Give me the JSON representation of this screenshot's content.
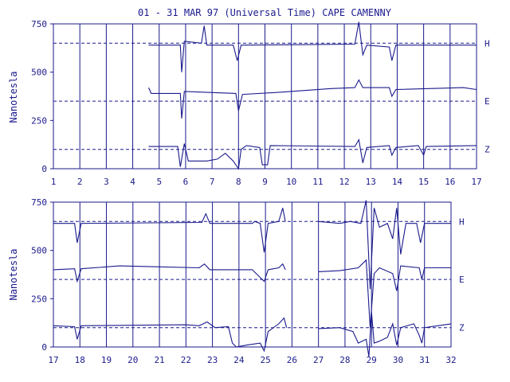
{
  "title": "01 - 31 MAR 97 (Universal Time) CAPE CAMENNY",
  "ylabel": "Nanotesla",
  "colors": {
    "ink": "#1a1a8c",
    "background": "#ffffff"
  },
  "chart_data": [
    {
      "type": "line",
      "panel": "top",
      "xlim": [
        1,
        17
      ],
      "ylim": [
        0,
        750
      ],
      "xticks": [
        "1",
        "2",
        "3",
        "4",
        "5",
        "6",
        "7",
        "8",
        "9",
        "10",
        "11",
        "12",
        "13",
        "14",
        "15",
        "16",
        "17"
      ],
      "yticks": [
        "0",
        "250",
        "500",
        "750"
      ],
      "grid": true,
      "baselines": [
        650,
        350,
        100
      ],
      "series": [
        {
          "name": "H",
          "label_value": 650,
          "segments": [
            [
              [
                4.6,
                640
              ],
              [
                5.8,
                640
              ],
              [
                5.85,
                500
              ],
              [
                5.95,
                660
              ],
              [
                6.6,
                650
              ],
              [
                6.7,
                740
              ],
              [
                6.8,
                640
              ],
              [
                7.8,
                640
              ],
              [
                7.95,
                560
              ],
              [
                8.1,
                640
              ],
              [
                12.4,
                645
              ],
              [
                12.55,
                760
              ],
              [
                12.7,
                590
              ],
              [
                12.85,
                640
              ],
              [
                13.7,
                630
              ],
              [
                13.8,
                560
              ],
              [
                13.95,
                640
              ],
              [
                17,
                640
              ]
            ]
          ]
        },
        {
          "name": "E",
          "label_value": 350,
          "segments": [
            [
              [
                4.6,
                420
              ],
              [
                4.7,
                390
              ],
              [
                5.8,
                390
              ],
              [
                5.85,
                260
              ],
              [
                5.95,
                400
              ],
              [
                7.9,
                390
              ],
              [
                8.0,
                300
              ],
              [
                8.15,
                385
              ],
              [
                9.5,
                395
              ],
              [
                10.5,
                405
              ],
              [
                11.5,
                415
              ],
              [
                12.4,
                420
              ],
              [
                12.55,
                460
              ],
              [
                12.7,
                420
              ],
              [
                13.7,
                420
              ],
              [
                13.8,
                375
              ],
              [
                13.95,
                410
              ],
              [
                16.5,
                420
              ],
              [
                17,
                410
              ]
            ]
          ]
        },
        {
          "name": "Z",
          "label_value": 100,
          "segments": [
            [
              [
                4.6,
                115
              ],
              [
                5.7,
                115
              ],
              [
                5.8,
                10
              ],
              [
                5.95,
                130
              ],
              [
                6.1,
                40
              ],
              [
                6.8,
                40
              ],
              [
                7.2,
                50
              ],
              [
                7.5,
                80
              ],
              [
                7.8,
                40
              ],
              [
                8.0,
                0
              ],
              [
                8.1,
                100
              ],
              [
                8.3,
                120
              ],
              [
                8.8,
                110
              ],
              [
                8.9,
                20
              ],
              [
                9.1,
                20
              ],
              [
                9.2,
                120
              ],
              [
                12.4,
                115
              ],
              [
                12.55,
                150
              ],
              [
                12.7,
                30
              ],
              [
                12.85,
                110
              ],
              [
                13.7,
                120
              ],
              [
                13.8,
                70
              ],
              [
                13.95,
                110
              ],
              [
                14.8,
                120
              ],
              [
                15.0,
                70
              ],
              [
                15.1,
                115
              ],
              [
                17,
                120
              ]
            ]
          ]
        }
      ]
    },
    {
      "type": "line",
      "panel": "bottom",
      "xlim": [
        17,
        32
      ],
      "ylim": [
        0,
        750
      ],
      "xticks": [
        "17",
        "18",
        "19",
        "20",
        "21",
        "22",
        "23",
        "24",
        "25",
        "26",
        "27",
        "28",
        "29",
        "30",
        "31",
        "32"
      ],
      "yticks": [
        "0",
        "250",
        "500",
        "750"
      ],
      "grid": true,
      "baselines": [
        650,
        350,
        100
      ],
      "series": [
        {
          "name": "H",
          "label_value": 650,
          "segments": [
            [
              [
                17,
                640
              ],
              [
                17.8,
                640
              ],
              [
                17.9,
                540
              ],
              [
                18.05,
                640
              ],
              [
                22.6,
                645
              ],
              [
                22.75,
                690
              ],
              [
                22.9,
                640
              ],
              [
                24.5,
                640
              ],
              [
                24.6,
                650
              ],
              [
                24.8,
                640
              ],
              [
                24.95,
                490
              ],
              [
                25.1,
                640
              ],
              [
                25.5,
                650
              ],
              [
                25.65,
                720
              ],
              [
                25.75,
                650
              ]
            ],
            [
              [
                27.0,
                650
              ],
              [
                27.8,
                640
              ],
              [
                28.2,
                650
              ],
              [
                28.6,
                640
              ],
              [
                28.8,
                760
              ],
              [
                28.95,
                300
              ],
              [
                29.1,
                720
              ],
              [
                29.3,
                620
              ],
              [
                29.6,
                640
              ],
              [
                29.8,
                560
              ],
              [
                29.95,
                720
              ],
              [
                30.1,
                480
              ],
              [
                30.3,
                640
              ],
              [
                30.7,
                640
              ],
              [
                30.85,
                540
              ],
              [
                31.0,
                640
              ],
              [
                32,
                640
              ]
            ]
          ]
        },
        {
          "name": "E",
          "label_value": 350,
          "segments": [
            [
              [
                17,
                400
              ],
              [
                17.8,
                405
              ],
              [
                17.9,
                340
              ],
              [
                18.05,
                405
              ],
              [
                19.5,
                420
              ],
              [
                21,
                415
              ],
              [
                22.5,
                410
              ],
              [
                22.7,
                430
              ],
              [
                22.9,
                400
              ],
              [
                24.5,
                400
              ],
              [
                24.95,
                340
              ],
              [
                25.1,
                400
              ],
              [
                25.5,
                410
              ],
              [
                25.65,
                430
              ],
              [
                25.75,
                400
              ]
            ],
            [
              [
                27.0,
                390
              ],
              [
                27.8,
                395
              ],
              [
                28.5,
                410
              ],
              [
                28.8,
                450
              ],
              [
                28.95,
                100
              ],
              [
                29.1,
                380
              ],
              [
                29.3,
                410
              ],
              [
                29.8,
                380
              ],
              [
                29.95,
                290
              ],
              [
                30.1,
                420
              ],
              [
                30.8,
                410
              ],
              [
                30.9,
                350
              ],
              [
                31.0,
                410
              ],
              [
                32,
                410
              ]
            ]
          ]
        },
        {
          "name": "Z",
          "label_value": 100,
          "segments": [
            [
              [
                17,
                110
              ],
              [
                17.8,
                105
              ],
              [
                17.9,
                40
              ],
              [
                18.05,
                110
              ],
              [
                22,
                115
              ],
              [
                22.5,
                110
              ],
              [
                22.8,
                130
              ],
              [
                23.1,
                100
              ],
              [
                23.6,
                105
              ],
              [
                23.75,
                20
              ],
              [
                23.9,
                0
              ],
              [
                24.3,
                10
              ],
              [
                24.8,
                20
              ],
              [
                24.95,
                -20
              ],
              [
                25.1,
                80
              ],
              [
                25.5,
                120
              ],
              [
                25.7,
                150
              ],
              [
                25.8,
                100
              ]
            ],
            [
              [
                27.0,
                95
              ],
              [
                27.8,
                100
              ],
              [
                28.3,
                80
              ],
              [
                28.5,
                20
              ],
              [
                28.8,
                40
              ],
              [
                28.9,
                -50
              ],
              [
                29.0,
                180
              ],
              [
                29.1,
                20
              ],
              [
                29.3,
                30
              ],
              [
                29.6,
                50
              ],
              [
                29.8,
                120
              ],
              [
                29.95,
                10
              ],
              [
                30.1,
                100
              ],
              [
                30.6,
                120
              ],
              [
                30.8,
                60
              ],
              [
                30.9,
                20
              ],
              [
                31.0,
                100
              ],
              [
                31.5,
                110
              ],
              [
                32,
                120
              ]
            ]
          ]
        }
      ]
    }
  ]
}
